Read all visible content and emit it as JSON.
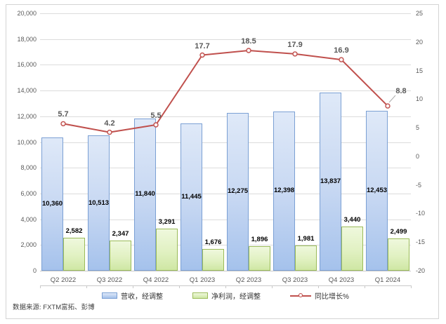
{
  "source_note": "数据来源: FXTM富拓、彭博",
  "chart_data": {
    "type": "combo-bar-line",
    "categories": [
      "Q2 2022",
      "Q3 2022",
      "Q4 2022",
      "Q1 2023",
      "Q2 2023",
      "Q3 2023",
      "Q4 2023",
      "Q1 2024"
    ],
    "series": [
      {
        "name": "营收，经调整",
        "type": "bar",
        "axis": "left",
        "values": [
          10360,
          10513,
          11840,
          11445,
          12275,
          12398,
          13837,
          12453
        ],
        "labels": [
          "10,360",
          "10,513",
          "11,840",
          "11,445",
          "12,275",
          "12,398",
          "13,837",
          "12,453"
        ],
        "fill_top": "#dfe9f8",
        "fill_mid": "#c6d7f2",
        "fill_bottom": "#a5c2ec",
        "border": "#7ba0d4"
      },
      {
        "name": "净利润，经调整",
        "type": "bar",
        "axis": "left",
        "values": [
          2582,
          2347,
          3291,
          1676,
          1896,
          1981,
          3440,
          2499
        ],
        "labels": [
          "2,582",
          "2,347",
          "3,291",
          "1,676",
          "1,896",
          "1,981",
          "3,440",
          "2,499"
        ],
        "fill_top": "#eff8dd",
        "fill_mid": "#e1f1c2",
        "fill_bottom": "#cfe7a4",
        "border": "#9bbb59"
      },
      {
        "name": "同比增长%",
        "type": "line",
        "axis": "right",
        "values": [
          5.7,
          4.2,
          5.5,
          17.7,
          18.5,
          17.9,
          16.9,
          8.8
        ],
        "labels": [
          "5.7",
          "4.2",
          "5.5",
          "17.7",
          "18.5",
          "17.9",
          "16.9",
          "8.8"
        ],
        "color": "#c0504d",
        "marker_fill": "#fdf3f3"
      }
    ],
    "left_axis": {
      "min": 0,
      "max": 20000,
      "step": 2000,
      "tick_labels": [
        "0",
        "2,000",
        "4,000",
        "6,000",
        "8,000",
        "10,000",
        "12,000",
        "14,000",
        "16,000",
        "18,000",
        "20,000"
      ]
    },
    "right_axis": {
      "min": -20,
      "max": 25,
      "step": 5,
      "tick_labels": [
        "-20",
        "-15",
        "-10",
        "-5",
        "0",
        "5",
        "10",
        "15",
        "20",
        "25"
      ]
    },
    "grid": true,
    "legend_position": "bottom"
  }
}
